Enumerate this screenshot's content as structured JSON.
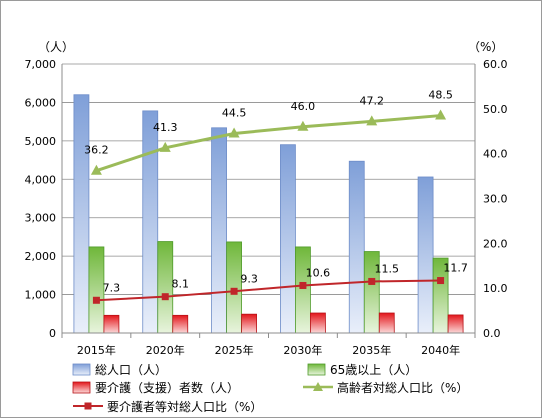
{
  "chart_data": {
    "type": "bar",
    "categories": [
      "2015年",
      "2020年",
      "2025年",
      "2030年",
      "2035年",
      "2040年"
    ],
    "left_unit": "（人）",
    "right_unit": "（%）",
    "ylim_left": [
      0,
      7000
    ],
    "ylim_right": [
      0,
      60
    ],
    "yticks_left": [
      "0",
      "1,000",
      "2,000",
      "3,000",
      "4,000",
      "5,000",
      "6,000",
      "7,000"
    ],
    "yticks_right": [
      "0.0",
      "10.0",
      "20.0",
      "30.0",
      "40.0",
      "50.0",
      "60.0"
    ],
    "grid": true,
    "legend_position": "bottom",
    "series": [
      {
        "name": "総人口（人）",
        "kind": "bar",
        "axis": "left",
        "color": "#8eaee0",
        "values": [
          6200,
          5780,
          5340,
          4900,
          4470,
          4060
        ]
      },
      {
        "name": "65歳以上（人）",
        "kind": "bar",
        "axis": "left",
        "color": "#7fc34a",
        "values": [
          2240,
          2380,
          2370,
          2240,
          2120,
          1950
        ]
      },
      {
        "name": "要介護（支援）者数（人）",
        "kind": "bar",
        "axis": "left",
        "color": "#e8262a",
        "values": [
          460,
          460,
          490,
          520,
          520,
          470
        ]
      },
      {
        "name": "高齢者対総人口比（%）",
        "kind": "line",
        "axis": "right",
        "color": "#9bbb59",
        "marker": "triangle",
        "values": [
          36.2,
          41.3,
          44.5,
          46.0,
          47.2,
          48.5
        ],
        "labels": [
          "36.2",
          "41.3",
          "44.5",
          "46.0",
          "47.2",
          "48.5"
        ]
      },
      {
        "name": "要介護者等対総人口比（%）",
        "kind": "line",
        "axis": "right",
        "color": "#c0262a",
        "marker": "square",
        "values": [
          7.3,
          8.1,
          9.3,
          10.6,
          11.5,
          11.7
        ],
        "labels": [
          "7.3",
          "8.1",
          "9.3",
          "10.6",
          "11.5",
          "11.7"
        ]
      }
    ]
  }
}
